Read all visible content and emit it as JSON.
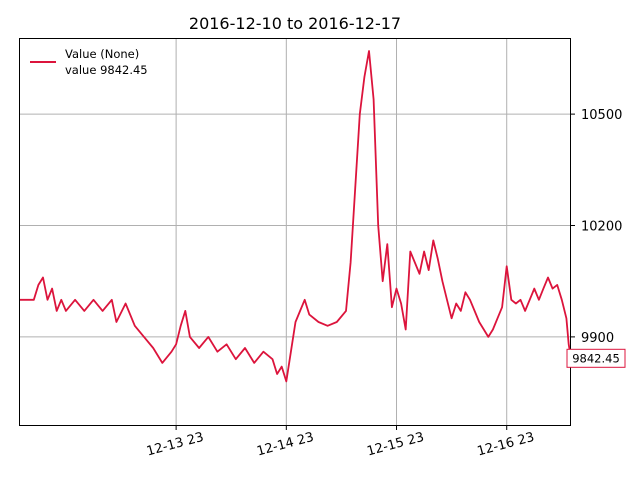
{
  "chart_data": {
    "type": "line",
    "title": "2016-12-10 to 2016-12-17",
    "xlabel": "",
    "ylabel": "",
    "xlim": [
      "2016-12-12 13:00",
      "2016-12-17 13:00"
    ],
    "ylim": [
      9660,
      10705
    ],
    "grid": true,
    "y_axis_side": "right",
    "legend_position": "top-left",
    "legend": {
      "series_label": "Value (None)",
      "value_label": "value 9842.45"
    },
    "last_value_label": "9842.45",
    "colors": {
      "series": "#dc143c",
      "grid": "#b0b0b0",
      "axes": "#000000"
    },
    "x_ticks": [
      {
        "x": "2016-12-13 23:00",
        "label": "12-13 23"
      },
      {
        "x": "2016-12-14 23:00",
        "label": "12-14 23"
      },
      {
        "x": "2016-12-15 23:00",
        "label": "12-15 23"
      },
      {
        "x": "2016-12-16 23:00",
        "label": "12-16 23"
      }
    ],
    "y_ticks": [
      {
        "y": 9900,
        "label": "9900"
      },
      {
        "y": 10200,
        "label": "10200"
      },
      {
        "y": 10500,
        "label": "10500"
      }
    ],
    "series": [
      {
        "name": "Value (None)",
        "points": [
          [
            "2016-12-12 13:00",
            10000
          ],
          [
            "2016-12-12 16:00",
            10000
          ],
          [
            "2016-12-12 17:00",
            10040
          ],
          [
            "2016-12-12 18:00",
            10060
          ],
          [
            "2016-12-12 19:00",
            10000
          ],
          [
            "2016-12-12 20:00",
            10030
          ],
          [
            "2016-12-12 21:00",
            9970
          ],
          [
            "2016-12-12 22:00",
            10000
          ],
          [
            "2016-12-12 23:00",
            9970
          ],
          [
            "2016-12-13 01:00",
            10000
          ],
          [
            "2016-12-13 03:00",
            9970
          ],
          [
            "2016-12-13 05:00",
            10000
          ],
          [
            "2016-12-13 07:00",
            9970
          ],
          [
            "2016-12-13 09:00",
            10000
          ],
          [
            "2016-12-13 10:00",
            9940
          ],
          [
            "2016-12-13 12:00",
            9990
          ],
          [
            "2016-12-13 14:00",
            9930
          ],
          [
            "2016-12-13 16:00",
            9900
          ],
          [
            "2016-12-13 18:00",
            9870
          ],
          [
            "2016-12-13 20:00",
            9830
          ],
          [
            "2016-12-13 22:00",
            9860
          ],
          [
            "2016-12-13 23:00",
            9880
          ],
          [
            "2016-12-14 00:00",
            9930
          ],
          [
            "2016-12-14 01:00",
            9970
          ],
          [
            "2016-12-14 02:00",
            9900
          ],
          [
            "2016-12-14 04:00",
            9870
          ],
          [
            "2016-12-14 06:00",
            9900
          ],
          [
            "2016-12-14 08:00",
            9860
          ],
          [
            "2016-12-14 10:00",
            9880
          ],
          [
            "2016-12-14 12:00",
            9840
          ],
          [
            "2016-12-14 14:00",
            9870
          ],
          [
            "2016-12-14 16:00",
            9830
          ],
          [
            "2016-12-14 18:00",
            9860
          ],
          [
            "2016-12-14 20:00",
            9840
          ],
          [
            "2016-12-14 21:00",
            9800
          ],
          [
            "2016-12-14 22:00",
            9820
          ],
          [
            "2016-12-14 23:00",
            9780
          ],
          [
            "2016-12-15 00:00",
            9860
          ],
          [
            "2016-12-15 01:00",
            9940
          ],
          [
            "2016-12-15 02:00",
            9970
          ],
          [
            "2016-12-15 03:00",
            10000
          ],
          [
            "2016-12-15 04:00",
            9960
          ],
          [
            "2016-12-15 06:00",
            9940
          ],
          [
            "2016-12-15 08:00",
            9930
          ],
          [
            "2016-12-15 10:00",
            9940
          ],
          [
            "2016-12-15 12:00",
            9970
          ],
          [
            "2016-12-15 13:00",
            10100
          ],
          [
            "2016-12-15 14:00",
            10300
          ],
          [
            "2016-12-15 15:00",
            10500
          ],
          [
            "2016-12-15 16:00",
            10600
          ],
          [
            "2016-12-15 17:00",
            10670
          ],
          [
            "2016-12-15 18:00",
            10540
          ],
          [
            "2016-12-15 19:00",
            10200
          ],
          [
            "2016-12-15 20:00",
            10050
          ],
          [
            "2016-12-15 21:00",
            10150
          ],
          [
            "2016-12-15 22:00",
            9980
          ],
          [
            "2016-12-15 23:00",
            10030
          ],
          [
            "2016-12-16 00:00",
            9990
          ],
          [
            "2016-12-16 01:00",
            9920
          ],
          [
            "2016-12-16 02:00",
            10130
          ],
          [
            "2016-12-16 03:00",
            10100
          ],
          [
            "2016-12-16 04:00",
            10070
          ],
          [
            "2016-12-16 05:00",
            10130
          ],
          [
            "2016-12-16 06:00",
            10080
          ],
          [
            "2016-12-16 07:00",
            10160
          ],
          [
            "2016-12-16 08:00",
            10110
          ],
          [
            "2016-12-16 09:00",
            10050
          ],
          [
            "2016-12-16 10:00",
            10000
          ],
          [
            "2016-12-16 11:00",
            9950
          ],
          [
            "2016-12-16 12:00",
            9990
          ],
          [
            "2016-12-16 13:00",
            9970
          ],
          [
            "2016-12-16 14:00",
            10020
          ],
          [
            "2016-12-16 15:00",
            10000
          ],
          [
            "2016-12-16 16:00",
            9970
          ],
          [
            "2016-12-16 17:00",
            9940
          ],
          [
            "2016-12-16 18:00",
            9920
          ],
          [
            "2016-12-16 19:00",
            9900
          ],
          [
            "2016-12-16 20:00",
            9920
          ],
          [
            "2016-12-16 21:00",
            9950
          ],
          [
            "2016-12-16 22:00",
            9980
          ],
          [
            "2016-12-16 23:00",
            10090
          ],
          [
            "2016-12-17 00:00",
            10000
          ],
          [
            "2016-12-17 01:00",
            9990
          ],
          [
            "2016-12-17 02:00",
            10000
          ],
          [
            "2016-12-17 03:00",
            9970
          ],
          [
            "2016-12-17 04:00",
            10000
          ],
          [
            "2016-12-17 05:00",
            10030
          ],
          [
            "2016-12-17 06:00",
            10000
          ],
          [
            "2016-12-17 07:00",
            10030
          ],
          [
            "2016-12-17 08:00",
            10060
          ],
          [
            "2016-12-17 09:00",
            10030
          ],
          [
            "2016-12-17 10:00",
            10040
          ],
          [
            "2016-12-17 11:00",
            10000
          ],
          [
            "2016-12-17 12:00",
            9950
          ],
          [
            "2016-12-17 12:30",
            9880
          ],
          [
            "2016-12-17 13:00",
            9842.45
          ]
        ]
      }
    ]
  }
}
